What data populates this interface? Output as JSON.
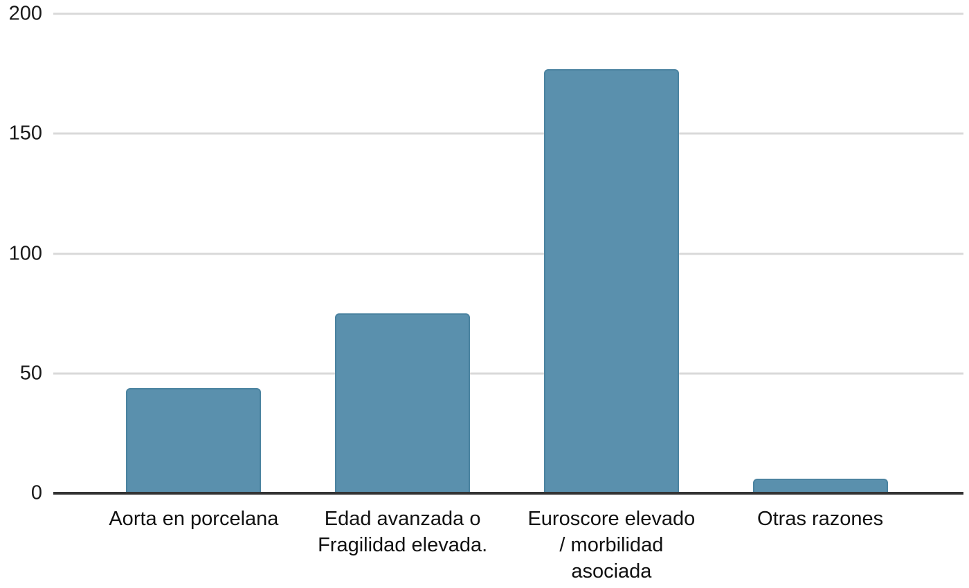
{
  "chart_data": {
    "type": "bar",
    "title": "",
    "xlabel": "",
    "ylabel": "",
    "categories": [
      "Aorta en porcelana",
      "Edad avanzada o Fragilidad elevada.",
      "Euroscore elevado / morbilidad asociada",
      "Otras razones"
    ],
    "category_lines": [
      [
        "Aorta en porcelana"
      ],
      [
        "Edad avanzada o",
        "Fragilidad elevada."
      ],
      [
        "Euroscore elevado",
        "/ morbilidad",
        "asociada"
      ],
      [
        "Otras razones"
      ]
    ],
    "values": [
      44,
      75,
      177,
      6
    ],
    "yticks": [
      0,
      50,
      100,
      150,
      200
    ],
    "ylim": [
      0,
      200
    ],
    "grid": true,
    "legend_position": "none",
    "colors": {
      "bar_fill": "#5a90ad",
      "bar_border": "#4b83a0",
      "gridline": "#d9d9d9",
      "axis_line": "#333333",
      "tick_text": "#1a1a1a",
      "label_text": "#111111",
      "background": "#ffffff"
    }
  }
}
